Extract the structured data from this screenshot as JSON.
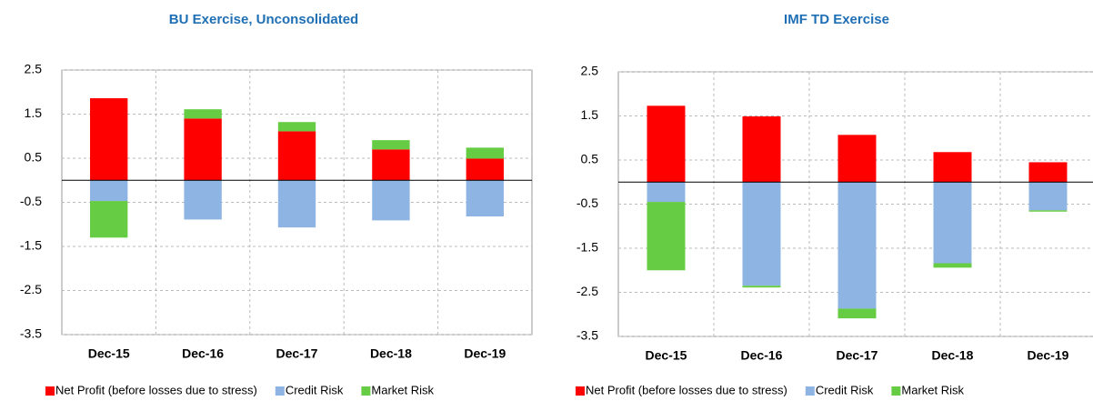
{
  "chart_data": [
    {
      "type": "bar",
      "stacked": true,
      "title": "BU Exercise, Unconsolidated",
      "categories": [
        "Dec-15",
        "Dec-16",
        "Dec-17",
        "Dec-18",
        "Dec-19"
      ],
      "series": [
        {
          "name": "Net Profit (before losses due to stress)",
          "color": "#ff0000",
          "values": [
            1.86,
            1.4,
            1.11,
            0.7,
            0.49
          ]
        },
        {
          "name": "Credit Risk",
          "color": "#8db4e2",
          "values": [
            -0.47,
            -0.89,
            -1.07,
            -0.91,
            -0.82
          ]
        },
        {
          "name": "Market Risk",
          "color": "#66cc44",
          "values": [
            -0.83,
            0.21,
            0.21,
            0.21,
            0.25
          ]
        }
      ],
      "ylim": [
        -3.5,
        2.5
      ],
      "yticks": [
        -3.5,
        -2.5,
        -1.5,
        -0.5,
        0.5,
        1.5,
        2.5
      ],
      "grid": true,
      "legend": "bottom"
    },
    {
      "type": "bar",
      "stacked": true,
      "title": "IMF TD Exercise",
      "categories": [
        "Dec-15",
        "Dec-16",
        "Dec-17",
        "Dec-18",
        "Dec-19"
      ],
      "series": [
        {
          "name": "Net Profit (before losses due to stress)",
          "color": "#ff0000",
          "values": [
            1.73,
            1.49,
            1.07,
            0.68,
            0.45
          ]
        },
        {
          "name": "Credit Risk",
          "color": "#8db4e2",
          "values": [
            -0.45,
            -2.35,
            -2.87,
            -1.84,
            -0.64
          ]
        },
        {
          "name": "Market Risk",
          "color": "#66cc44",
          "values": [
            -1.55,
            -0.04,
            -0.22,
            -0.1,
            -0.03
          ]
        }
      ],
      "ylim": [
        -3.5,
        2.5
      ],
      "yticks": [
        -3.5,
        -2.5,
        -1.5,
        -0.5,
        0.5,
        1.5,
        2.5
      ],
      "grid": true,
      "legend": "bottom"
    }
  ]
}
